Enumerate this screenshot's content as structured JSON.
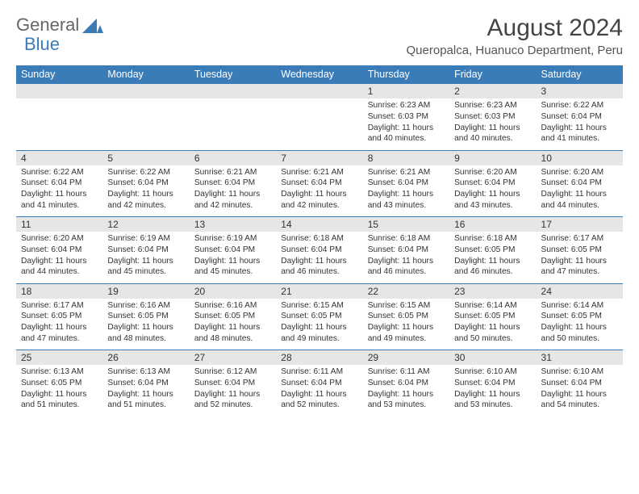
{
  "logo": {
    "text1": "General",
    "text2": "Blue"
  },
  "title": "August 2024",
  "location": "Queropalca, Huanuco Department, Peru",
  "colors": {
    "header_bg": "#3a7cb8",
    "header_text": "#ffffff",
    "daynum_bg": "#e6e6e6",
    "border": "#3a7cb8",
    "body_text": "#333333",
    "title_text": "#444444"
  },
  "day_headers": [
    "Sunday",
    "Monday",
    "Tuesday",
    "Wednesday",
    "Thursday",
    "Friday",
    "Saturday"
  ],
  "weeks": [
    [
      null,
      null,
      null,
      null,
      {
        "n": "1",
        "sunrise": "6:23 AM",
        "sunset": "6:03 PM",
        "daylight": "11 hours and 40 minutes."
      },
      {
        "n": "2",
        "sunrise": "6:23 AM",
        "sunset": "6:03 PM",
        "daylight": "11 hours and 40 minutes."
      },
      {
        "n": "3",
        "sunrise": "6:22 AM",
        "sunset": "6:04 PM",
        "daylight": "11 hours and 41 minutes."
      }
    ],
    [
      {
        "n": "4",
        "sunrise": "6:22 AM",
        "sunset": "6:04 PM",
        "daylight": "11 hours and 41 minutes."
      },
      {
        "n": "5",
        "sunrise": "6:22 AM",
        "sunset": "6:04 PM",
        "daylight": "11 hours and 42 minutes."
      },
      {
        "n": "6",
        "sunrise": "6:21 AM",
        "sunset": "6:04 PM",
        "daylight": "11 hours and 42 minutes."
      },
      {
        "n": "7",
        "sunrise": "6:21 AM",
        "sunset": "6:04 PM",
        "daylight": "11 hours and 42 minutes."
      },
      {
        "n": "8",
        "sunrise": "6:21 AM",
        "sunset": "6:04 PM",
        "daylight": "11 hours and 43 minutes."
      },
      {
        "n": "9",
        "sunrise": "6:20 AM",
        "sunset": "6:04 PM",
        "daylight": "11 hours and 43 minutes."
      },
      {
        "n": "10",
        "sunrise": "6:20 AM",
        "sunset": "6:04 PM",
        "daylight": "11 hours and 44 minutes."
      }
    ],
    [
      {
        "n": "11",
        "sunrise": "6:20 AM",
        "sunset": "6:04 PM",
        "daylight": "11 hours and 44 minutes."
      },
      {
        "n": "12",
        "sunrise": "6:19 AM",
        "sunset": "6:04 PM",
        "daylight": "11 hours and 45 minutes."
      },
      {
        "n": "13",
        "sunrise": "6:19 AM",
        "sunset": "6:04 PM",
        "daylight": "11 hours and 45 minutes."
      },
      {
        "n": "14",
        "sunrise": "6:18 AM",
        "sunset": "6:04 PM",
        "daylight": "11 hours and 46 minutes."
      },
      {
        "n": "15",
        "sunrise": "6:18 AM",
        "sunset": "6:04 PM",
        "daylight": "11 hours and 46 minutes."
      },
      {
        "n": "16",
        "sunrise": "6:18 AM",
        "sunset": "6:05 PM",
        "daylight": "11 hours and 46 minutes."
      },
      {
        "n": "17",
        "sunrise": "6:17 AM",
        "sunset": "6:05 PM",
        "daylight": "11 hours and 47 minutes."
      }
    ],
    [
      {
        "n": "18",
        "sunrise": "6:17 AM",
        "sunset": "6:05 PM",
        "daylight": "11 hours and 47 minutes."
      },
      {
        "n": "19",
        "sunrise": "6:16 AM",
        "sunset": "6:05 PM",
        "daylight": "11 hours and 48 minutes."
      },
      {
        "n": "20",
        "sunrise": "6:16 AM",
        "sunset": "6:05 PM",
        "daylight": "11 hours and 48 minutes."
      },
      {
        "n": "21",
        "sunrise": "6:15 AM",
        "sunset": "6:05 PM",
        "daylight": "11 hours and 49 minutes."
      },
      {
        "n": "22",
        "sunrise": "6:15 AM",
        "sunset": "6:05 PM",
        "daylight": "11 hours and 49 minutes."
      },
      {
        "n": "23",
        "sunrise": "6:14 AM",
        "sunset": "6:05 PM",
        "daylight": "11 hours and 50 minutes."
      },
      {
        "n": "24",
        "sunrise": "6:14 AM",
        "sunset": "6:05 PM",
        "daylight": "11 hours and 50 minutes."
      }
    ],
    [
      {
        "n": "25",
        "sunrise": "6:13 AM",
        "sunset": "6:05 PM",
        "daylight": "11 hours and 51 minutes."
      },
      {
        "n": "26",
        "sunrise": "6:13 AM",
        "sunset": "6:04 PM",
        "daylight": "11 hours and 51 minutes."
      },
      {
        "n": "27",
        "sunrise": "6:12 AM",
        "sunset": "6:04 PM",
        "daylight": "11 hours and 52 minutes."
      },
      {
        "n": "28",
        "sunrise": "6:11 AM",
        "sunset": "6:04 PM",
        "daylight": "11 hours and 52 minutes."
      },
      {
        "n": "29",
        "sunrise": "6:11 AM",
        "sunset": "6:04 PM",
        "daylight": "11 hours and 53 minutes."
      },
      {
        "n": "30",
        "sunrise": "6:10 AM",
        "sunset": "6:04 PM",
        "daylight": "11 hours and 53 minutes."
      },
      {
        "n": "31",
        "sunrise": "6:10 AM",
        "sunset": "6:04 PM",
        "daylight": "11 hours and 54 minutes."
      }
    ]
  ],
  "labels": {
    "sunrise": "Sunrise:",
    "sunset": "Sunset:",
    "daylight": "Daylight:"
  }
}
